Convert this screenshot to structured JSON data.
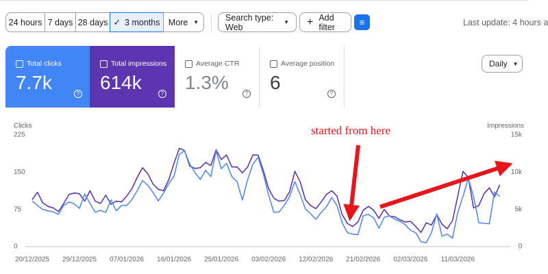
{
  "toolbar": {
    "date_ranges": [
      "24 hours",
      "7 days",
      "28 days",
      "3 months"
    ],
    "more": "More",
    "search_type": "Search type: Web",
    "add_filter": "Add filter",
    "last_update": "Last update: 4 hours a"
  },
  "metrics": [
    {
      "label": "Total clicks",
      "value": "7.7k"
    },
    {
      "label": "Total impressions",
      "value": "614k"
    },
    {
      "label": "Average CTR",
      "value": "1.3%"
    },
    {
      "label": "Average position",
      "value": "6"
    }
  ],
  "granularity": "Daily",
  "chart_data": {
    "type": "line",
    "annotation": "started from here",
    "categories": [
      "20/12/2025",
      null,
      null,
      null,
      null,
      null,
      null,
      null,
      null,
      "29/12/2025",
      null,
      null,
      null,
      null,
      null,
      null,
      null,
      null,
      "07/01/2026",
      null,
      null,
      null,
      null,
      null,
      null,
      null,
      null,
      "16/01/2026",
      null,
      null,
      null,
      null,
      null,
      null,
      null,
      null,
      "25/01/2026",
      null,
      null,
      null,
      null,
      null,
      null,
      null,
      null,
      "03/02/2026",
      null,
      null,
      null,
      null,
      null,
      null,
      null,
      null,
      "12/02/2026",
      null,
      null,
      null,
      null,
      null,
      null,
      null,
      null,
      "21/02/2026",
      null,
      null,
      null,
      null,
      null,
      null,
      null,
      null,
      "02/03/2026",
      null,
      null,
      null,
      null,
      null,
      null,
      null,
      null,
      "11/03/2026",
      null,
      null,
      null,
      null,
      null,
      null,
      null,
      null
    ],
    "ylim": [
      0,
      225
    ],
    "yticks": [
      0,
      75,
      150,
      225
    ],
    "y2lim": [
      0,
      15000
    ],
    "y2ticks": [
      0,
      {
        "value": 5000,
        "label": "5k"
      },
      {
        "value": 10000,
        "label": "10k"
      },
      {
        "value": 15000,
        "label": "15k"
      }
    ],
    "grid": false,
    "series": [
      {
        "name": "Clicks",
        "color": "#4e8cf0",
        "values": [
          92,
          83,
          75,
          72,
          70,
          65,
          83,
          90,
          86,
          77,
          106,
          87,
          69,
          73,
          69,
          94,
          72,
          83,
          83,
          95,
          113,
          133,
          124,
          109,
          92,
          108,
          127,
          142,
          186,
          193,
          166,
          149,
          135,
          154,
          141,
          193,
          157,
          168,
          141,
          131,
          94,
          135,
          166,
          180,
          146,
          104,
          69,
          70,
          83,
          101,
          131,
          105,
          76,
          66,
          55,
          69,
          80,
          99,
          83,
          48,
          28,
          25,
          24,
          62,
          65,
          58,
          37,
          59,
          62,
          55,
          51,
          44,
          33,
          28,
          10,
          8,
          28,
          66,
          21,
          25,
          17,
          69,
          101,
          138,
          101,
          48,
          47,
          46,
          110,
          101
        ]
      },
      {
        "name": "Impressions",
        "color": "#5e35b1",
        "axis": "y2",
        "values": [
          6300,
          7300,
          5900,
          5400,
          5200,
          4700,
          5800,
          7000,
          7200,
          7100,
          6100,
          7500,
          6100,
          5800,
          6900,
          5700,
          6100,
          6000,
          6800,
          7800,
          9300,
          10600,
          9800,
          8400,
          7700,
          7500,
          9000,
          11200,
          13200,
          12900,
          10800,
          10500,
          10600,
          11300,
          10900,
          13000,
          11700,
          12300,
          10700,
          10700,
          9900,
          10700,
          12300,
          12300,
          10200,
          7800,
          6500,
          6100,
          6200,
          7400,
          10100,
          8700,
          6300,
          5500,
          5100,
          6000,
          7000,
          7500,
          6800,
          4300,
          3100,
          2700,
          3300,
          4900,
          5400,
          4900,
          3800,
          5000,
          4100,
          4000,
          3600,
          3300,
          3400,
          2700,
          1900,
          3200,
          2900,
          4300,
          3000,
          2400,
          3500,
          6800,
          10100,
          9300,
          5200,
          5500,
          7100,
          7900,
          6700,
          8300
        ]
      }
    ]
  }
}
